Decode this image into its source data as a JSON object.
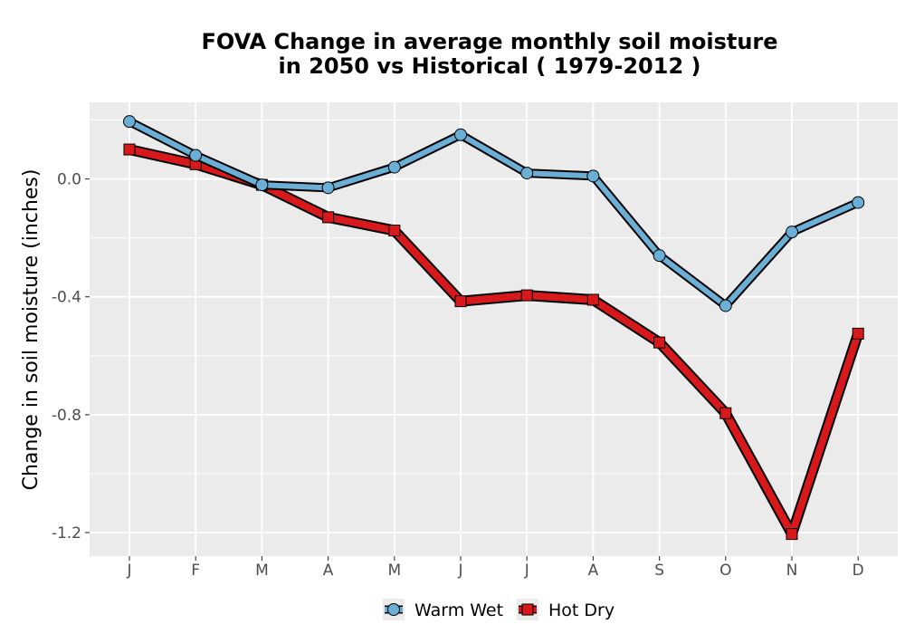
{
  "chart_data": {
    "type": "line",
    "title_line1": "FOVA  Change in average monthly soil moisture",
    "title_line2": "in 2050 vs Historical ( 1979-2012 )",
    "xlabel": "",
    "ylabel": "Change in soil moisture (inches)",
    "categories": [
      "J",
      "F",
      "M",
      "A",
      "M",
      "J",
      "J",
      "A",
      "S",
      "O",
      "N",
      "D"
    ],
    "yticks": [
      0.0,
      -0.4,
      -0.8,
      -1.2
    ],
    "ytick_labels": [
      "0.0",
      "-0.4",
      "-0.8",
      "-1.2"
    ],
    "ylim": [
      -1.28,
      0.26
    ],
    "grid": true,
    "legend_position": "bottom",
    "series": [
      {
        "name": "Warm Wet",
        "color": "#6baed6",
        "marker": "circle",
        "values": [
          0.195,
          0.08,
          -0.02,
          -0.03,
          0.04,
          0.15,
          0.02,
          0.01,
          -0.26,
          -0.43,
          -0.18,
          -0.08
        ]
      },
      {
        "name": "Hot Dry",
        "color": "#d7191c",
        "marker": "square",
        "values": [
          0.1,
          0.05,
          -0.02,
          -0.13,
          -0.175,
          -0.415,
          -0.395,
          -0.41,
          -0.555,
          -0.795,
          -1.205,
          -0.525
        ]
      }
    ]
  }
}
